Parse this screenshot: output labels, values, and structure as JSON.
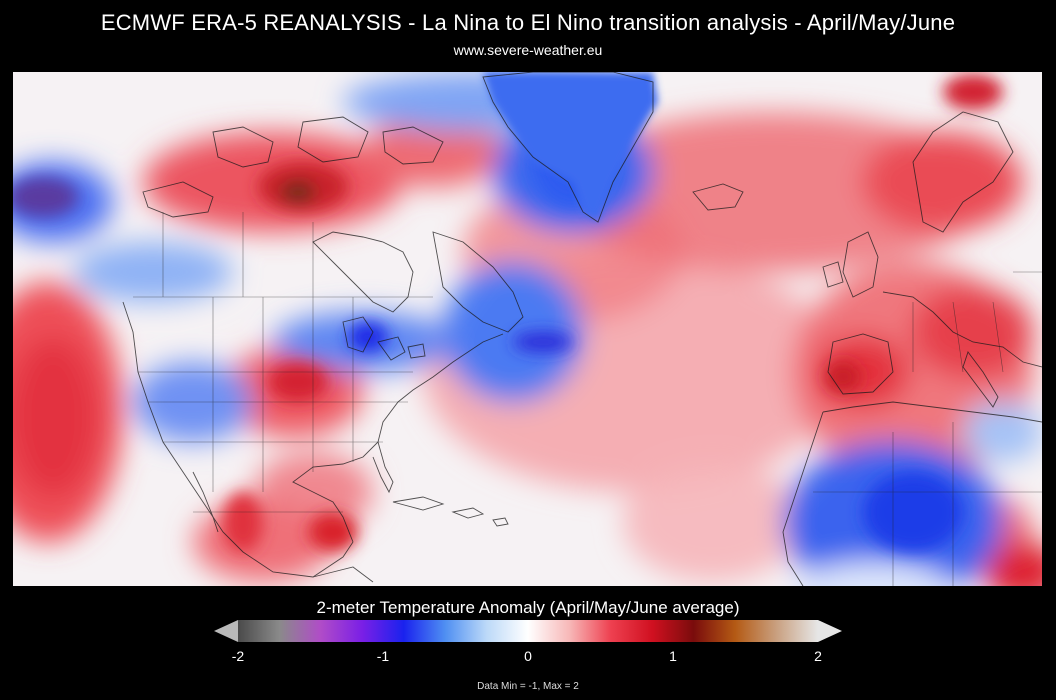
{
  "header": {
    "title": "ECMWF ERA-5 REANALYSIS -  La Nina to El Nino transition analysis - April/May/June",
    "subtitle": "www.severe-weather.eu"
  },
  "legend": {
    "title": "2-meter Temperature Anomaly (April/May/June average)",
    "range_min": -2,
    "range_max": 2,
    "ticks": [
      "-2",
      "-1",
      "0",
      "1",
      "2"
    ],
    "colors": [
      "#4a4a4a",
      "#8a8a8a",
      "#b04cc8",
      "#7a1fe6",
      "#1a22ee",
      "#4f8ff2",
      "#bcd9f8",
      "#ffffff",
      "#f7b8b8",
      "#ee4050",
      "#d01020",
      "#7a0c0c",
      "#b45a14",
      "#c9a080",
      "#e6e6e6"
    ],
    "data_range_text": "Data Min = -1, Max = 2"
  },
  "map": {
    "colors": {
      "ocean_neutral": "#f6f2f4",
      "warm_light": "#f5a8ac",
      "warm": "#ee4a52",
      "warm_strong": "#d41e2a",
      "warm_extreme": "#6e2418",
      "cold_light": "#b8d2f6",
      "cold": "#3f6ff0",
      "cold_strong": "#1c2fe6",
      "cold_extreme": "#6a3a9a"
    }
  }
}
